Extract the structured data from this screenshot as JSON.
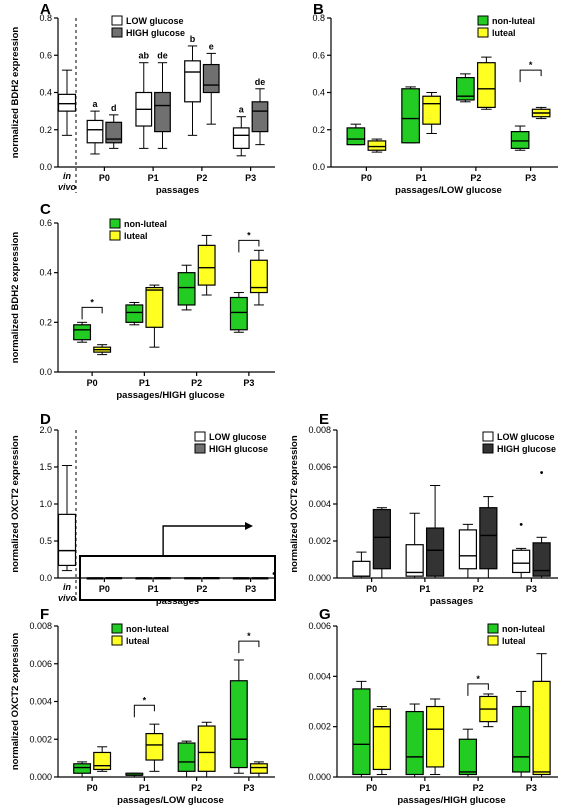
{
  "colors": {
    "low": "#ffffff",
    "high": "#707070",
    "high_dark": "#333333",
    "non_luteal": "#22cc22",
    "luteal": "#ffff22"
  },
  "chart_data": [
    {
      "id": "A",
      "letter": "A",
      "type": "box",
      "ylabel": "normalized BDH2 expression",
      "xlabel": "passages",
      "ylim": [
        0,
        0.8
      ],
      "yticks": [
        "0.0",
        "0.2",
        "0.4",
        "0.6",
        "0.8"
      ],
      "legend": [
        "LOW glucose",
        "HIGH glucose"
      ],
      "invivo": {
        "label_1": "in",
        "label_2": "vivo",
        "box": [
          0.17,
          0.3,
          0.34,
          0.39,
          0.52
        ],
        "color": "low"
      },
      "categories": [
        "P0",
        "P1",
        "P2",
        "P3"
      ],
      "series": [
        {
          "name": "LOW glucose",
          "color": "low",
          "boxes": [
            [
              0.07,
              0.13,
              0.2,
              0.25,
              0.3
            ],
            [
              0.1,
              0.22,
              0.31,
              0.4,
              0.56
            ],
            [
              0.17,
              0.35,
              0.51,
              0.57,
              0.65
            ],
            [
              0.06,
              0.1,
              0.17,
              0.21,
              0.27
            ]
          ],
          "letters": [
            "a",
            "ab",
            "b",
            "a"
          ]
        },
        {
          "name": "HIGH glucose",
          "color": "high",
          "boxes": [
            [
              0.1,
              0.13,
              0.15,
              0.24,
              0.28
            ],
            [
              0.1,
              0.19,
              0.33,
              0.4,
              0.56
            ],
            [
              0.23,
              0.4,
              0.44,
              0.55,
              0.61
            ],
            [
              0.12,
              0.19,
              0.3,
              0.35,
              0.42
            ]
          ],
          "letters": [
            "d",
            "de",
            "e",
            "de"
          ]
        }
      ]
    },
    {
      "id": "B",
      "letter": "B",
      "type": "box",
      "ylabel": "",
      "xlabel": "passages/LOW glucose",
      "ylim": [
        0,
        0.8
      ],
      "yticks": [
        "0.0",
        "0.2",
        "0.4",
        "0.6",
        "0.8"
      ],
      "legend": [
        "non-luteal",
        "luteal"
      ],
      "categories": [
        "P0",
        "P1",
        "P2",
        "P3"
      ],
      "series": [
        {
          "name": "non-luteal",
          "color": "non_luteal",
          "boxes": [
            [
              0.12,
              0.12,
              0.15,
              0.21,
              0.23
            ],
            [
              0.13,
              0.13,
              0.26,
              0.42,
              0.43
            ],
            [
              0.35,
              0.36,
              0.38,
              0.48,
              0.5
            ],
            [
              0.09,
              0.1,
              0.14,
              0.19,
              0.22
            ]
          ]
        },
        {
          "name": "luteal",
          "color": "luteal",
          "boxes": [
            [
              0.08,
              0.09,
              0.11,
              0.14,
              0.15
            ],
            [
              0.18,
              0.23,
              0.34,
              0.38,
              0.4
            ],
            [
              0.31,
              0.32,
              0.42,
              0.56,
              0.59
            ],
            [
              0.26,
              0.27,
              0.29,
              0.31,
              0.32
            ]
          ]
        }
      ],
      "sig": [
        {
          "cat": 3,
          "label": "*",
          "y": 0.52
        }
      ]
    },
    {
      "id": "C",
      "letter": "C",
      "type": "box",
      "ylabel": "normalized BDH2 expression",
      "xlabel": "passages/HIGH glucose",
      "ylim": [
        0,
        0.6
      ],
      "yticks": [
        "0.0",
        "0.2",
        "0.4",
        "0.6"
      ],
      "legend": [
        "non-luteal",
        "luteal"
      ],
      "categories": [
        "P0",
        "P1",
        "P2",
        "P3"
      ],
      "series": [
        {
          "name": "non-luteal",
          "color": "non_luteal",
          "boxes": [
            [
              0.12,
              0.13,
              0.17,
              0.19,
              0.2
            ],
            [
              0.19,
              0.2,
              0.24,
              0.27,
              0.28
            ],
            [
              0.25,
              0.27,
              0.34,
              0.4,
              0.43
            ],
            [
              0.16,
              0.17,
              0.24,
              0.3,
              0.32
            ]
          ]
        },
        {
          "name": "luteal",
          "color": "luteal",
          "boxes": [
            [
              0.07,
              0.08,
              0.09,
              0.1,
              0.11
            ],
            [
              0.1,
              0.18,
              0.33,
              0.34,
              0.35
            ],
            [
              0.31,
              0.35,
              0.42,
              0.51,
              0.55
            ],
            [
              0.27,
              0.32,
              0.34,
              0.45,
              0.49
            ]
          ]
        }
      ],
      "sig": [
        {
          "cat": 0,
          "label": "*",
          "y": 0.26
        },
        {
          "cat": 3,
          "label": "*",
          "y": 0.53
        }
      ]
    },
    {
      "id": "D",
      "letter": "D",
      "type": "box",
      "ylabel": "normalized OXCT2 expression",
      "xlabel": "passages",
      "ylim": [
        0,
        2.0
      ],
      "yticks": [
        "0.0",
        "0.5",
        "1.0",
        "1.5",
        "2.0"
      ],
      "legend": [
        "LOW glucose",
        "HIGH glucose"
      ],
      "invivo": {
        "label_1": "in",
        "label_2": "vivo",
        "box": [
          0.1,
          0.17,
          0.37,
          0.86,
          1.52
        ],
        "color": "low"
      },
      "categories": [
        "P0",
        "P1",
        "P2",
        "P3"
      ],
      "series": [
        {
          "name": "LOW glucose",
          "color": "low",
          "boxes": [
            [
              0.0,
              0.0002,
              0.0005,
              0.0009,
              0.0014
            ],
            [
              0.0,
              0.0002,
              0.0004,
              0.0018,
              0.0035
            ],
            [
              0.0,
              0.0005,
              0.0012,
              0.0026,
              0.0029
            ],
            [
              0.0,
              0.0003,
              0.0008,
              0.0015,
              0.0016
            ]
          ]
        },
        {
          "name": "HIGH glucose",
          "color": "high",
          "boxes": [
            [
              0.0,
              0.0005,
              0.0022,
              0.0037,
              0.0038
            ],
            [
              0.0,
              0.0003,
              0.0015,
              0.0027,
              0.005
            ],
            [
              0.0,
              0.0005,
              0.0023,
              0.0038,
              0.0044
            ],
            [
              0.0,
              0.0003,
              0.001,
              0.002,
              0.0022
            ]
          ]
        }
      ],
      "outliers": [
        {
          "cat": 3,
          "series": 1,
          "value": 0.06
        }
      ]
    },
    {
      "id": "E",
      "letter": "E",
      "type": "box",
      "ylabel": "normalized OXCT2 expression",
      "xlabel": "passages",
      "ylim": [
        0,
        0.008
      ],
      "yticks": [
        "0.000",
        "0.002",
        "0.004",
        "0.006",
        "0.008"
      ],
      "legend": [
        "LOW glucose",
        "HIGH glucose"
      ],
      "categories": [
        "P0",
        "P1",
        "P2",
        "P3"
      ],
      "series": [
        {
          "name": "LOW glucose",
          "color": "low",
          "boxes": [
            [
              0.0,
              0.0001,
              0.0001,
              0.0009,
              0.0014
            ],
            [
              0.0,
              0.0001,
              0.0003,
              0.0018,
              0.0035
            ],
            [
              0.0,
              0.0005,
              0.0012,
              0.0026,
              0.0029
            ],
            [
              0.0,
              0.0003,
              0.0008,
              0.0015,
              0.0016
            ]
          ]
        },
        {
          "name": "HIGH glucose",
          "color": "high_dark",
          "boxes": [
            [
              0.0,
              0.0005,
              0.0022,
              0.0037,
              0.0038
            ],
            [
              0.0,
              0.0001,
              0.0015,
              0.0027,
              0.005
            ],
            [
              0.0,
              0.0005,
              0.0023,
              0.0038,
              0.0044
            ],
            [
              0.0,
              0.0001,
              0.0004,
              0.0019,
              0.0022
            ]
          ]
        }
      ],
      "outliers": [
        {
          "cat": 3,
          "series": 0,
          "value": 0.0029
        },
        {
          "cat": 3,
          "series": 1,
          "value": 0.0057
        }
      ]
    },
    {
      "id": "F",
      "letter": "F",
      "type": "box",
      "ylabel": "normalized OXCT2 expression",
      "xlabel": "passages/LOW glucose",
      "ylim": [
        0,
        0.008
      ],
      "yticks": [
        "0.000",
        "0.002",
        "0.004",
        "0.006",
        "0.008"
      ],
      "legend": [
        "non-luteal",
        "luteal"
      ],
      "categories": [
        "P0",
        "P1",
        "P2",
        "P3"
      ],
      "series": [
        {
          "name": "non-luteal",
          "color": "non_luteal",
          "boxes": [
            [
              0.0,
              0.0002,
              0.0005,
              0.0007,
              0.0008
            ],
            [
              0.0,
              0.0001,
              0.0001,
              0.0002,
              0.0002
            ],
            [
              0.0,
              0.0003,
              0.0008,
              0.0018,
              0.0019
            ],
            [
              0.0002,
              0.0005,
              0.002,
              0.0051,
              0.0062
            ]
          ]
        },
        {
          "name": "luteal",
          "color": "luteal",
          "boxes": [
            [
              0.0003,
              0.0004,
              0.0006,
              0.0013,
              0.0016
            ],
            [
              0.0003,
              0.0009,
              0.0017,
              0.0023,
              0.0028
            ],
            [
              0.0,
              0.0003,
              0.0013,
              0.0027,
              0.0029
            ],
            [
              0.0,
              0.0002,
              0.0005,
              0.0007,
              0.0008
            ]
          ]
        }
      ],
      "sig": [
        {
          "cat": 1,
          "label": "*",
          "y": 0.0038
        },
        {
          "cat": 3,
          "label": "*",
          "y": 0.0072
        }
      ]
    },
    {
      "id": "G",
      "letter": "G",
      "type": "box",
      "ylabel": "",
      "xlabel": "passages/HIGH glucose",
      "ylim": [
        0,
        0.006
      ],
      "yticks": [
        "0.000",
        "0.002",
        "0.004",
        "0.006"
      ],
      "legend": [
        "non-luteal",
        "luteal"
      ],
      "categories": [
        "P0",
        "P1",
        "P2",
        "P3"
      ],
      "series": [
        {
          "name": "non-luteal",
          "color": "non_luteal",
          "boxes": [
            [
              0.0,
              0.0001,
              0.0013,
              0.0035,
              0.0038
            ],
            [
              0.0,
              0.0001,
              0.0008,
              0.0026,
              0.0029
            ],
            [
              0.0,
              0.0001,
              0.0002,
              0.0015,
              0.0019
            ],
            [
              0.0,
              0.0002,
              0.0008,
              0.0028,
              0.0034
            ]
          ]
        },
        {
          "name": "luteal",
          "color": "luteal",
          "boxes": [
            [
              0.0001,
              0.0003,
              0.002,
              0.0027,
              0.0028
            ],
            [
              0.0001,
              0.0004,
              0.0019,
              0.0028,
              0.0031
            ],
            [
              0.002,
              0.0022,
              0.0027,
              0.0032,
              0.0033
            ],
            [
              0.0,
              0.0001,
              0.0002,
              0.0038,
              0.0049
            ]
          ]
        }
      ],
      "sig": [
        {
          "cat": 2,
          "label": "*",
          "y": 0.0037
        }
      ]
    }
  ]
}
